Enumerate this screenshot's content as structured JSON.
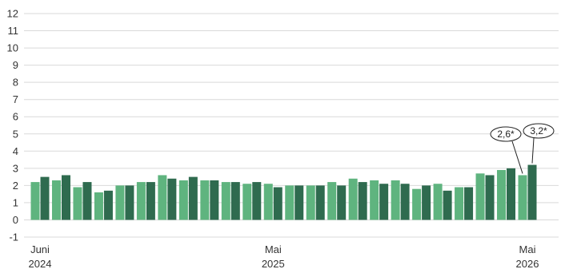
{
  "chart_data": {
    "type": "bar",
    "title": "",
    "xlabel": "",
    "ylabel": "",
    "ylim": [
      -1,
      12
    ],
    "yticks": [
      -1,
      0,
      1,
      2,
      3,
      4,
      5,
      6,
      7,
      8,
      9,
      10,
      11,
      12
    ],
    "grid": true,
    "legend": "none",
    "categories": [
      "Jun 2024",
      "Jul 2024",
      "Aug 2024",
      "Sep 2024",
      "Okt 2024",
      "Nov 2024",
      "Dez 2024",
      "Jan 2025",
      "Feb 2025",
      "Mär 2025",
      "Apr 2025",
      "Mai 2025",
      "Jun 2025",
      "Jul 2025",
      "Aug 2025",
      "Sep 2025",
      "Okt 2025",
      "Nov 2025",
      "Dez 2025",
      "Jan 2026",
      "Feb 2026",
      "Mär 2026",
      "Apr 2026",
      "Mai 2026"
    ],
    "series": [
      {
        "color": "#5fb47f",
        "values": [
          2.2,
          2.3,
          1.9,
          1.6,
          2.0,
          2.2,
          2.6,
          2.3,
          2.3,
          2.2,
          2.1,
          2.1,
          2.0,
          2.0,
          2.2,
          2.4,
          2.3,
          2.3,
          1.8,
          2.1,
          1.9,
          2.7,
          2.9,
          2.6
        ]
      },
      {
        "color": "#2f6b4f",
        "values": [
          2.5,
          2.6,
          2.2,
          1.7,
          2.0,
          2.2,
          2.4,
          2.5,
          2.3,
          2.2,
          2.2,
          1.9,
          2.0,
          2.0,
          2.0,
          2.2,
          2.1,
          2.1,
          2.0,
          1.7,
          1.9,
          2.6,
          3.0,
          3.2
        ]
      }
    ],
    "x_axis_labels": [
      {
        "index": 0,
        "month": "Juni",
        "year": "2024"
      },
      {
        "index": 11,
        "month": "Mai",
        "year": "2025"
      },
      {
        "index": 23,
        "month": "Mai",
        "year": "2026"
      }
    ],
    "callouts": [
      {
        "index": 23,
        "series": 0,
        "text": "2,6*"
      },
      {
        "index": 23,
        "series": 1,
        "text": "3,2*"
      }
    ]
  }
}
